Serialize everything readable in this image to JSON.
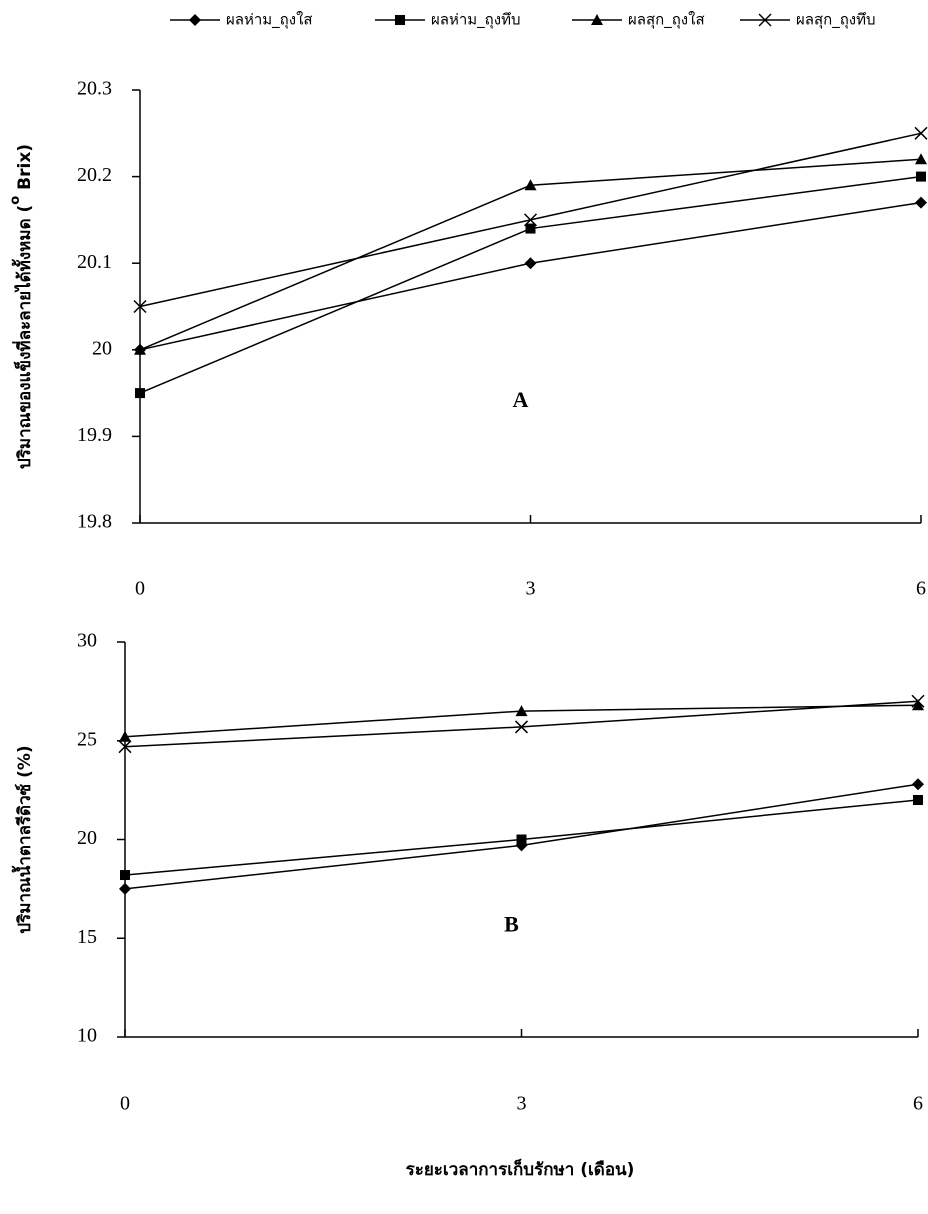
{
  "chart_data": [
    {
      "type": "line",
      "panel_label": "A",
      "ylabel": "ปริมาณของแข็งที่ละลายได้ทั้งหมด (",
      "ylabel_superscript": "o",
      "ylabel_unit": " Brix)",
      "x": [
        0,
        3,
        6
      ],
      "xlim": [
        0,
        6
      ],
      "xticks": [
        0,
        3,
        6
      ],
      "ylim": [
        19.8,
        20.3
      ],
      "yticks": [
        19.8,
        19.9,
        20,
        20.1,
        20.2,
        20.3
      ],
      "series": [
        {
          "name": "ผลห่าม_ถุงใส",
          "color": "#000000",
          "marker": "diamond",
          "values": [
            20.0,
            20.1,
            20.17
          ]
        },
        {
          "name": "ผลห่าม_ถุงทึบ",
          "color": "#000000",
          "marker": "square",
          "values": [
            19.95,
            20.14,
            20.2
          ]
        },
        {
          "name": "ผลสุก_ถุงใส",
          "color": "#000000",
          "marker": "triangle",
          "values": [
            20.0,
            20.19,
            20.22
          ]
        },
        {
          "name": "ผลสุก_ถุงทึบ",
          "color": "#000000",
          "marker": "x",
          "values": [
            20.05,
            20.15,
            20.25
          ]
        }
      ]
    },
    {
      "type": "line",
      "panel_label": "B",
      "ylabel": "ปริมาณน้ำตาลรีดิวซ์ (%)",
      "xlabel": "ระยะเวลาการเก็บรักษา (เดือน)",
      "x": [
        0,
        3,
        6
      ],
      "xlim": [
        0,
        6
      ],
      "xticks": [
        0,
        3,
        6
      ],
      "ylim": [
        10,
        30
      ],
      "yticks": [
        10,
        15,
        20,
        25,
        30
      ],
      "series": [
        {
          "color": "#000000",
          "marker": "diamond",
          "values": [
            17.5,
            19.7,
            22.8
          ]
        },
        {
          "color": "#000000",
          "marker": "square",
          "values": [
            18.2,
            20.0,
            22.0
          ]
        },
        {
          "color": "#000000",
          "marker": "triangle",
          "values": [
            25.2,
            26.5,
            26.8
          ]
        },
        {
          "color": "#000000",
          "marker": "x",
          "values": [
            24.7,
            25.7,
            27.0
          ]
        }
      ]
    }
  ]
}
